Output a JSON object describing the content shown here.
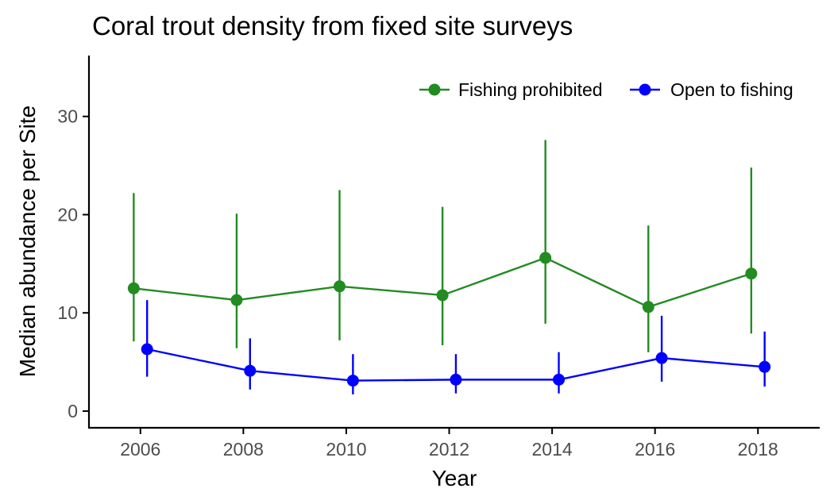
{
  "chart_data": {
    "type": "line",
    "title": "Coral trout density from fixed site surveys",
    "xlabel": "Year",
    "ylabel": "Median abundance per Site",
    "xlim": [
      2005,
      2019.2
    ],
    "ylim": [
      -1.7,
      36.2
    ],
    "x_ticks": [
      2006,
      2008,
      2010,
      2012,
      2014,
      2016,
      2018
    ],
    "y_ticks": [
      0,
      10,
      20,
      30
    ],
    "grid": false,
    "legend_position": "top-right",
    "x": [
      2006,
      2008,
      2010,
      2012,
      2014,
      2016,
      2018
    ],
    "series": [
      {
        "name": "Fishing prohibited",
        "color": "#228b22",
        "dodge": -0.13,
        "values": [
          12.5,
          11.3,
          12.7,
          11.8,
          15.6,
          10.6,
          14.0
        ],
        "lower": [
          7.1,
          6.4,
          7.2,
          6.7,
          8.9,
          6.0,
          7.9
        ],
        "upper": [
          22.2,
          20.1,
          22.5,
          20.8,
          27.6,
          18.9,
          24.8
        ]
      },
      {
        "name": "Open to fishing",
        "color": "#0000ff",
        "dodge": 0.13,
        "values": [
          6.3,
          4.1,
          3.1,
          3.2,
          3.2,
          5.4,
          4.5
        ],
        "lower": [
          3.5,
          2.2,
          1.7,
          1.8,
          1.8,
          3.0,
          2.5
        ],
        "upper": [
          11.3,
          7.4,
          5.8,
          5.8,
          6.0,
          9.7,
          8.1
        ]
      }
    ]
  }
}
